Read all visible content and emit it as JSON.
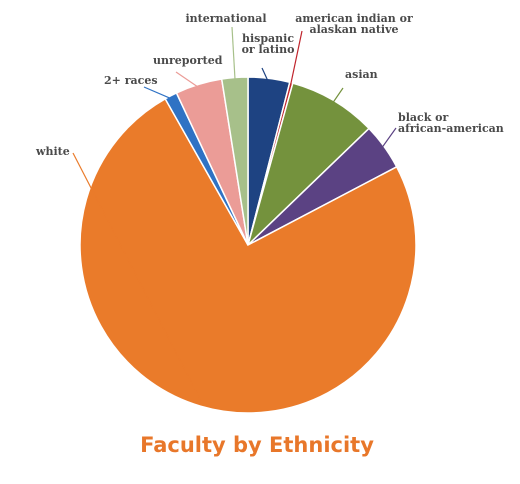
{
  "chart_data": {
    "type": "pie",
    "title": "Faculty by Ethnicity",
    "slices": [
      {
        "label": "hispanic or latino",
        "lines": [
          "hispanic",
          "or latino"
        ],
        "value": 4.0,
        "color": "#1e4382"
      },
      {
        "label": "american indian or alaskan native",
        "lines": [
          "american indian or",
          "alaskan native"
        ],
        "value": 0.3,
        "color": "#c0242c"
      },
      {
        "label": "asian",
        "lines": [
          "asian"
        ],
        "value": 8.5,
        "color": "#74923d"
      },
      {
        "label": "black or african-american",
        "lines": [
          "black or",
          "african-american"
        ],
        "value": 4.5,
        "color": "#5b4283"
      },
      {
        "label": "white",
        "lines": [
          "white"
        ],
        "value": 74.5,
        "color": "#ea7b2a"
      },
      {
        "label": "2+ races",
        "lines": [
          "2+ races"
        ],
        "value": 1.2,
        "color": "#2f72c4"
      },
      {
        "label": "unreported",
        "lines": [
          "unreported"
        ],
        "value": 4.5,
        "color": "#eb9c97"
      },
      {
        "label": "international",
        "lines": [
          "international"
        ],
        "value": 2.5,
        "color": "#a7c08a"
      }
    ]
  }
}
